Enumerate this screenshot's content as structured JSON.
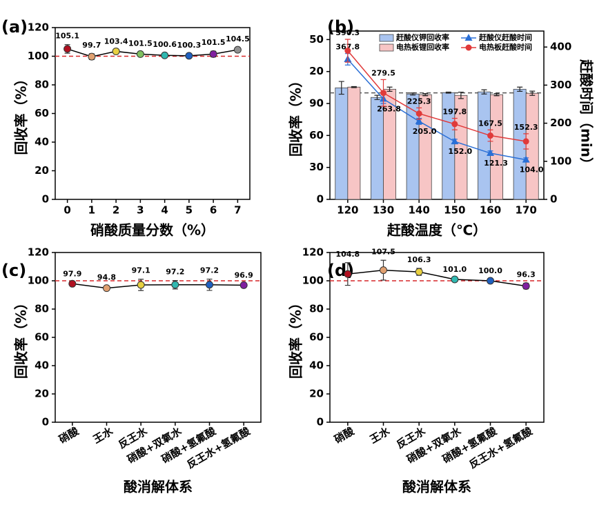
{
  "chart_data": [
    {
      "type": "line",
      "label": "(a)",
      "xlabel": "硝酸质量分数（%）",
      "ylabel": "回收率（%）",
      "categories": [
        "0",
        "1",
        "2",
        "3",
        "4",
        "5",
        "6",
        "7"
      ],
      "values": [
        105.1,
        99.7,
        103.4,
        101.5,
        100.6,
        100.3,
        101.5,
        104.5
      ],
      "errors": [
        3,
        2,
        1,
        1.5,
        1.5,
        1.5,
        2,
        1.5
      ],
      "colors": [
        "#b01020",
        "#e0a070",
        "#e8d040",
        "#80c060",
        "#30b8b0",
        "#2060c0",
        "#8020a0",
        "#909090"
      ],
      "line_color": "#000000",
      "ylim": [
        0,
        120
      ],
      "yticks": [
        0,
        20,
        40,
        60,
        80,
        100,
        120
      ],
      "reference_line": {
        "value": 100,
        "color": "#d62728"
      }
    },
    {
      "type": "bar_line",
      "label": "(b)",
      "xlabel": "赶酸温度（℃）",
      "ylabel": "回收率（%）",
      "y2label": "赶酸时间（min）",
      "categories": [
        "120",
        "130",
        "140",
        "150",
        "160",
        "170"
      ],
      "ylim": [
        0,
        158
      ],
      "yticks": [
        0,
        30,
        60,
        90,
        {
          "value": 120,
          "label": "20"
        },
        {
          "value": 150,
          "label": "50"
        }
      ],
      "y2lim": [
        0,
        442
      ],
      "y2ticks": [
        0,
        100,
        200,
        300,
        400
      ],
      "reference_line": {
        "value": 100,
        "color": "#555555"
      },
      "series": [
        {
          "name": "赶酸仪钾回收率",
          "kind": "bar",
          "color": "#a9c4f0",
          "values": [
            104.7,
            95.7,
            98.9,
            100.2,
            100.9,
            103.4
          ],
          "errors": [
            6,
            2,
            1,
            0.5,
            2,
            2
          ]
        },
        {
          "name": "电热板锂回收率",
          "kind": "bar",
          "color": "#f7c5c5",
          "values": [
            105.4,
            103.4,
            98.3,
            97.6,
            98.3,
            99.6
          ],
          "errors": [
            0.5,
            2,
            1,
            3,
            1,
            2
          ]
        },
        {
          "name": "赶酸仪赶酸时间",
          "kind": "line",
          "axis": "y2",
          "marker": "triangle",
          "color": "#2a6fd6",
          "values": [
            367.8,
            263.8,
            205.0,
            152.0,
            121.3,
            104.0
          ],
          "value_labels": [
            "367.8",
            "263.8",
            "205.0",
            "152.0",
            "121.3",
            "104.0"
          ],
          "errors": [
            15,
            12,
            8,
            6,
            6,
            5
          ]
        },
        {
          "name": "电热板赶酸时间",
          "kind": "line",
          "axis": "y2",
          "marker": "circle",
          "color": "#e03a3a",
          "values": [
            390.3,
            279.5,
            225.3,
            197.8,
            167.5,
            152.3
          ],
          "value_labels": [
            "390.3",
            "279.5",
            "225.3",
            "197.8",
            "167.5",
            "152.3"
          ],
          "errors": [
            30,
            35,
            15,
            15,
            15,
            20
          ]
        }
      ]
    },
    {
      "type": "line",
      "label": "(c)",
      "xlabel": "酸消解体系",
      "ylabel": "回收率（%）",
      "categories": [
        "硝酸",
        "王水",
        "反王水",
        "硝酸+双氧水",
        "硝酸+氢氟酸",
        "反王水+氢氟酸"
      ],
      "values": [
        97.9,
        94.8,
        97.1,
        97.2,
        97.2,
        96.9
      ],
      "errors": [
        1,
        1.5,
        4,
        3,
        4,
        1
      ],
      "colors": [
        "#b01020",
        "#e0a070",
        "#e8d040",
        "#30b8b0",
        "#2060c0",
        "#8020a0"
      ],
      "line_color": "#000000",
      "ylim": [
        0,
        120
      ],
      "yticks": [
        0,
        20,
        40,
        60,
        80,
        100,
        120
      ],
      "reference_line": {
        "value": 100,
        "color": "#d62728"
      }
    },
    {
      "type": "line",
      "label": "(d)",
      "xlabel": "酸消解体系",
      "ylabel": "回收率（%）",
      "categories": [
        "硝酸",
        "王水",
        "反王水",
        "硝酸+双氧水",
        "硝酸+氢氟酸",
        "反王水+氢氟酸"
      ],
      "values": [
        104.8,
        107.5,
        106.3,
        101.0,
        100.0,
        96.3
      ],
      "value_labels": [
        "104.8",
        "107.5",
        "106.3",
        "101.0",
        "100.0",
        "96.3"
      ],
      "errors": [
        8,
        7,
        2.5,
        1,
        1,
        2
      ],
      "colors": [
        "#b01020",
        "#e0a070",
        "#e8d040",
        "#30b8b0",
        "#2060c0",
        "#8020a0"
      ],
      "line_color": "#000000",
      "ylim": [
        0,
        120
      ],
      "yticks": [
        0,
        20,
        40,
        60,
        80,
        100,
        120
      ],
      "reference_line": {
        "value": 100,
        "color": "#d62728"
      }
    }
  ]
}
